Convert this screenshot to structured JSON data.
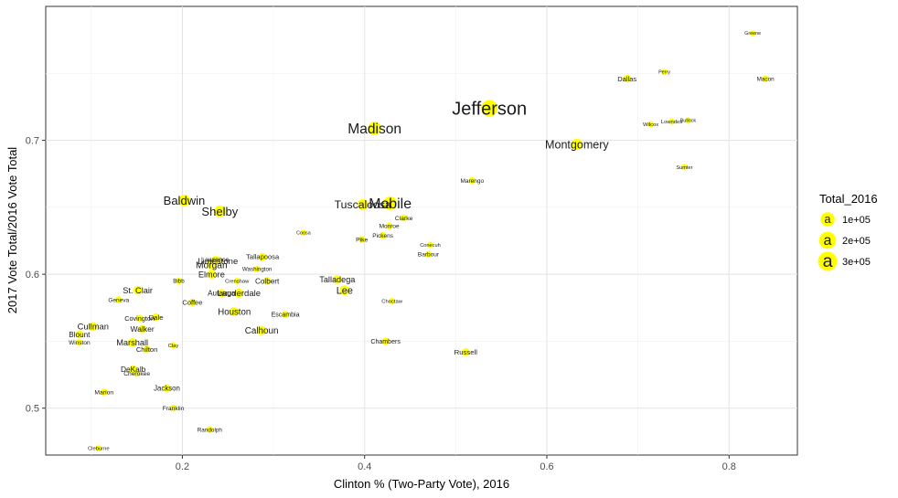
{
  "chart_data": {
    "type": "scatter",
    "title": "",
    "xlabel": "Clinton % (Two-Party Vote), 2016",
    "ylabel": "2017 Vote Total/2016 Vote Total",
    "xlim": [
      0.05,
      0.875
    ],
    "ylim": [
      0.465,
      0.8
    ],
    "xticks": [
      0.2,
      0.4,
      0.6,
      0.8
    ],
    "xtick_labels": [
      "0.2",
      "0.4",
      "0.6",
      "0.8"
    ],
    "yticks": [
      0.5,
      0.6,
      0.7
    ],
    "ytick_labels": [
      "0.5",
      "0.6",
      "0.7"
    ],
    "grid": true,
    "point_color": "#ffff00",
    "legend": {
      "title": "Total_2016",
      "position": "right",
      "glyph": "a",
      "entries": [
        {
          "label": "1e+05",
          "value": 100000
        },
        {
          "label": "2e+05",
          "value": 200000
        },
        {
          "label": "3e+05",
          "value": 300000
        }
      ]
    },
    "points": [
      {
        "name": "Jefferson",
        "x": 0.537,
        "y": 0.724,
        "total": 300000
      },
      {
        "name": "Madison",
        "x": 0.411,
        "y": 0.709,
        "total": 160000
      },
      {
        "name": "Montgomery",
        "x": 0.633,
        "y": 0.697,
        "total": 90000
      },
      {
        "name": "Mobile",
        "x": 0.428,
        "y": 0.653,
        "total": 170000
      },
      {
        "name": "Baldwin",
        "x": 0.202,
        "y": 0.655,
        "total": 100000
      },
      {
        "name": "Shelby",
        "x": 0.241,
        "y": 0.647,
        "total": 100000
      },
      {
        "name": "Tuscaloosa",
        "x": 0.398,
        "y": 0.652,
        "total": 85000
      },
      {
        "name": "Clarke",
        "x": 0.443,
        "y": 0.642,
        "total": 12000
      },
      {
        "name": "Monroe",
        "x": 0.427,
        "y": 0.636,
        "total": 10000
      },
      {
        "name": "Pickens",
        "x": 0.42,
        "y": 0.629,
        "total": 10000
      },
      {
        "name": "Marengo",
        "x": 0.518,
        "y": 0.67,
        "total": 10000
      },
      {
        "name": "Dallas",
        "x": 0.688,
        "y": 0.746,
        "total": 18000
      },
      {
        "name": "Perry",
        "x": 0.729,
        "y": 0.751,
        "total": 4000
      },
      {
        "name": "Greene",
        "x": 0.826,
        "y": 0.78,
        "total": 4000
      },
      {
        "name": "Macon",
        "x": 0.84,
        "y": 0.746,
        "total": 9000
      },
      {
        "name": "Wilcox",
        "x": 0.714,
        "y": 0.712,
        "total": 6000
      },
      {
        "name": "Lowndes",
        "x": 0.737,
        "y": 0.714,
        "total": 6000
      },
      {
        "name": "Bullock",
        "x": 0.755,
        "y": 0.715,
        "total": 4000
      },
      {
        "name": "Sumter",
        "x": 0.751,
        "y": 0.68,
        "total": 5000
      },
      {
        "name": "Coosa",
        "x": 0.333,
        "y": 0.631,
        "total": 4000
      },
      {
        "name": "Pike",
        "x": 0.397,
        "y": 0.626,
        "total": 12000
      },
      {
        "name": "Conecuh",
        "x": 0.472,
        "y": 0.622,
        "total": 5000
      },
      {
        "name": "Barbour",
        "x": 0.47,
        "y": 0.615,
        "total": 10000
      },
      {
        "name": "Limestone",
        "x": 0.239,
        "y": 0.61,
        "total": 40000
      },
      {
        "name": "Lawrence",
        "x": 0.236,
        "y": 0.611,
        "total": 14000
      },
      {
        "name": "Tallapoosa",
        "x": 0.288,
        "y": 0.613,
        "total": 18000
      },
      {
        "name": "Morgan",
        "x": 0.232,
        "y": 0.607,
        "total": 50000
      },
      {
        "name": "Washington",
        "x": 0.282,
        "y": 0.604,
        "total": 8000
      },
      {
        "name": "Elmore",
        "x": 0.232,
        "y": 0.6,
        "total": 35000
      },
      {
        "name": "Colbert",
        "x": 0.293,
        "y": 0.595,
        "total": 24000
      },
      {
        "name": "Talladega",
        "x": 0.37,
        "y": 0.596,
        "total": 35000
      },
      {
        "name": "Lee",
        "x": 0.378,
        "y": 0.588,
        "total": 60000
      },
      {
        "name": "Bibb",
        "x": 0.196,
        "y": 0.595,
        "total": 8000
      },
      {
        "name": "Crenshaw",
        "x": 0.26,
        "y": 0.595,
        "total": 6000
      },
      {
        "name": "St. Clair",
        "x": 0.151,
        "y": 0.588,
        "total": 36000
      },
      {
        "name": "Autauga",
        "x": 0.243,
        "y": 0.586,
        "total": 24000
      },
      {
        "name": "Lauderdale",
        "x": 0.262,
        "y": 0.586,
        "total": 40000
      },
      {
        "name": "Geneva",
        "x": 0.13,
        "y": 0.581,
        "total": 10000
      },
      {
        "name": "Coffee",
        "x": 0.211,
        "y": 0.579,
        "total": 18000
      },
      {
        "name": "Choctaw",
        "x": 0.43,
        "y": 0.58,
        "total": 6000
      },
      {
        "name": "Houston",
        "x": 0.257,
        "y": 0.572,
        "total": 42000
      },
      {
        "name": "Escambia",
        "x": 0.313,
        "y": 0.57,
        "total": 14000
      },
      {
        "name": "Covington",
        "x": 0.153,
        "y": 0.567,
        "total": 16000
      },
      {
        "name": "Dale",
        "x": 0.171,
        "y": 0.568,
        "total": 20000
      },
      {
        "name": "Cullman",
        "x": 0.102,
        "y": 0.561,
        "total": 38000
      },
      {
        "name": "Walker",
        "x": 0.156,
        "y": 0.559,
        "total": 28000
      },
      {
        "name": "Calhoun",
        "x": 0.287,
        "y": 0.558,
        "total": 45000
      },
      {
        "name": "Blount",
        "x": 0.087,
        "y": 0.555,
        "total": 24000
      },
      {
        "name": "Chambers",
        "x": 0.423,
        "y": 0.55,
        "total": 14000
      },
      {
        "name": "Winston",
        "x": 0.087,
        "y": 0.549,
        "total": 10000
      },
      {
        "name": "Marshall",
        "x": 0.145,
        "y": 0.549,
        "total": 36000
      },
      {
        "name": "Clay",
        "x": 0.19,
        "y": 0.547,
        "total": 6000
      },
      {
        "name": "Chilton",
        "x": 0.161,
        "y": 0.544,
        "total": 18000
      },
      {
        "name": "Russell",
        "x": 0.511,
        "y": 0.542,
        "total": 20000
      },
      {
        "name": "DeKalb",
        "x": 0.146,
        "y": 0.529,
        "total": 26000
      },
      {
        "name": "Cherokee",
        "x": 0.15,
        "y": 0.526,
        "total": 11000
      },
      {
        "name": "Jackson",
        "x": 0.183,
        "y": 0.515,
        "total": 21000
      },
      {
        "name": "Marion",
        "x": 0.114,
        "y": 0.512,
        "total": 12000
      },
      {
        "name": "Franklin",
        "x": 0.19,
        "y": 0.5,
        "total": 11000
      },
      {
        "name": "Randolph",
        "x": 0.23,
        "y": 0.484,
        "total": 9000
      },
      {
        "name": "Cleburne",
        "x": 0.108,
        "y": 0.47,
        "total": 6000
      }
    ]
  }
}
